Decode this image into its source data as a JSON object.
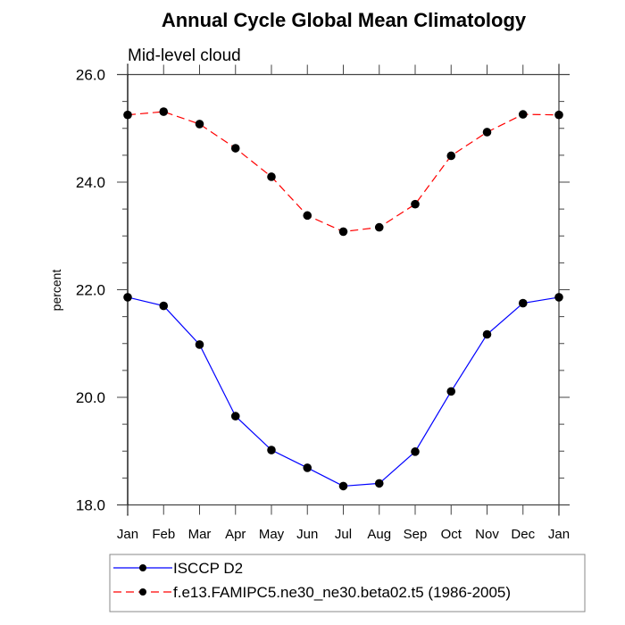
{
  "chart_data": {
    "type": "line",
    "title": "Annual Cycle Global Mean Climatology",
    "subtitle": "Mid-level cloud",
    "xlabel": "",
    "ylabel": "percent",
    "categories": [
      "Jan",
      "Feb",
      "Mar",
      "Apr",
      "May",
      "Jun",
      "Jul",
      "Aug",
      "Sep",
      "Oct",
      "Nov",
      "Dec",
      "Jan"
    ],
    "ylim": [
      18.0,
      26.0
    ],
    "yticks": [
      18.0,
      20.0,
      22.0,
      24.0,
      26.0
    ],
    "ytick_labels": [
      "18.0",
      "20.0",
      "22.0",
      "24.0",
      "26.0"
    ],
    "yminor_step": 0.5,
    "grid": false,
    "legend_position": "bottom",
    "series": [
      {
        "name": "ISCCP D2",
        "color": "#0000ff",
        "dash": "solid",
        "marker": "filled-circle",
        "values": [
          21.86,
          21.7,
          20.98,
          19.65,
          19.02,
          18.69,
          18.35,
          18.4,
          18.99,
          20.11,
          21.17,
          21.75,
          21.86
        ]
      },
      {
        "name": "f.e13.FAMIPC5.ne30_ne30.beta02.t5 (1986-2005)",
        "color": "#ff0000",
        "dash": "dashed",
        "marker": "filled-circle",
        "values": [
          25.25,
          25.31,
          25.08,
          24.63,
          24.1,
          23.38,
          23.08,
          23.16,
          23.59,
          24.49,
          24.93,
          25.26,
          25.25
        ]
      }
    ]
  }
}
